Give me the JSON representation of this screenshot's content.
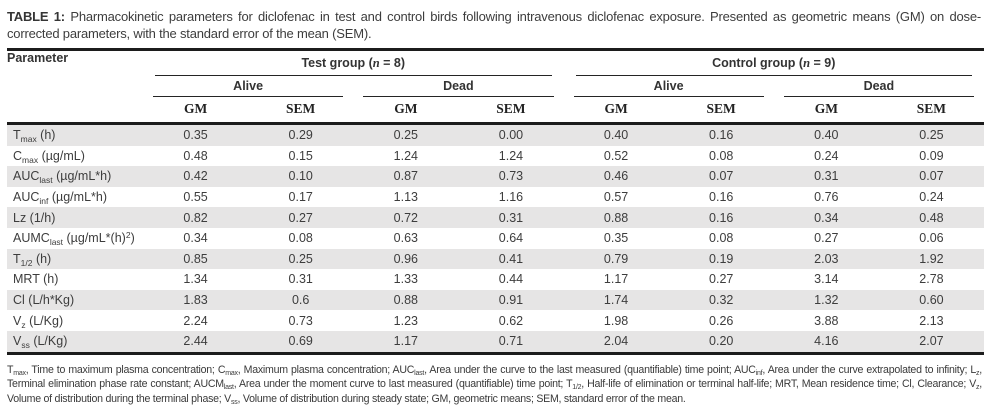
{
  "title": {
    "label": "TABLE 1:",
    "text": "Pharmacokinetic parameters for diclofenac in test and control birds following intravenous diclofenac exposure. Presented as geometric means (GM) on dose-corrected parameters, with the standard error of the mean (SEM)."
  },
  "table": {
    "param_header": "Parameter",
    "groups": [
      {
        "label": "Test group (*n* = 8)",
        "subgroups": [
          "Alive",
          "Dead"
        ]
      },
      {
        "label": "Control group (*n* = 9)",
        "subgroups": [
          "Alive",
          "Dead"
        ]
      }
    ],
    "stat_headers": [
      "GM",
      "SEM",
      "GM",
      "SEM",
      "GM",
      "SEM",
      "GM",
      "SEM"
    ],
    "rows": [
      {
        "param": "T_{max} (h)",
        "values": [
          "0.35",
          "0.29",
          "0.25",
          "0.00",
          "0.40",
          "0.16",
          "0.40",
          "0.25"
        ]
      },
      {
        "param": "C_{max} (µg/mL)",
        "values": [
          "0.48",
          "0.15",
          "1.24",
          "1.24",
          "0.52",
          "0.08",
          "0.24",
          "0.09"
        ]
      },
      {
        "param": "AUC_{last} (µg/mL*h)",
        "values": [
          "0.42",
          "0.10",
          "0.87",
          "0.73",
          "0.46",
          "0.07",
          "0.31",
          "0.07"
        ]
      },
      {
        "param": "AUC_{inf} (µg/mL*h)",
        "values": [
          "0.55",
          "0.17",
          "1.13",
          "1.16",
          "0.57",
          "0.16",
          "0.76",
          "0.24"
        ]
      },
      {
        "param": "Lz (1/h)",
        "values": [
          "0.82",
          "0.27",
          "0.72",
          "0.31",
          "0.88",
          "0.16",
          "0.34",
          "0.48"
        ]
      },
      {
        "param": "AUMC_{last} (µg/mL*(h)^{2})",
        "values": [
          "0.34",
          "0.08",
          "0.63",
          "0.64",
          "0.35",
          "0.08",
          "0.27",
          "0.06"
        ]
      },
      {
        "param": "T_{1/2} (h)",
        "values": [
          "0.85",
          "0.25",
          "0.96",
          "0.41",
          "0.79",
          "0.19",
          "2.03",
          "1.92"
        ]
      },
      {
        "param": "MRT (h)",
        "values": [
          "1.34",
          "0.31",
          "1.33",
          "0.44",
          "1.17",
          "0.27",
          "3.14",
          "2.78"
        ]
      },
      {
        "param": "Cl (L/h*Kg)",
        "values": [
          "1.83",
          "0.6",
          "0.88",
          "0.91",
          "1.74",
          "0.32",
          "1.32",
          "0.60"
        ]
      },
      {
        "param": "V_{z} (L/Kg)",
        "values": [
          "2.24",
          "0.73",
          "1.23",
          "0.62",
          "1.98",
          "0.26",
          "3.88",
          "2.13"
        ]
      },
      {
        "param": "V_{ss} (L/Kg)",
        "values": [
          "2.44",
          "0.69",
          "1.17",
          "0.71",
          "2.04",
          "0.20",
          "4.16",
          "2.07"
        ]
      }
    ]
  },
  "footnote": "T_{max}, Time to maximum plasma concentration; C_{max}, Maximum plasma concentration; AUC_{last}, Area under the curve to the last measured (quantifiable) time point; AUC_{inf}, Area under the curve extrapolated to infinity; L_{z}, Terminal elimination phase rate constant; AUCM_{last}, Area under the moment curve to last measured (quantifiable) time point; T_{1/2}, Half-life of elimination or terminal half-life; MRT, Mean residence time; Cl, Clearance; V_{z}, Volume of distribution during the terminal phase; V_{ss}, Volume of distribution during steady state; GM, geometric means; SEM, standard error of the mean."
}
